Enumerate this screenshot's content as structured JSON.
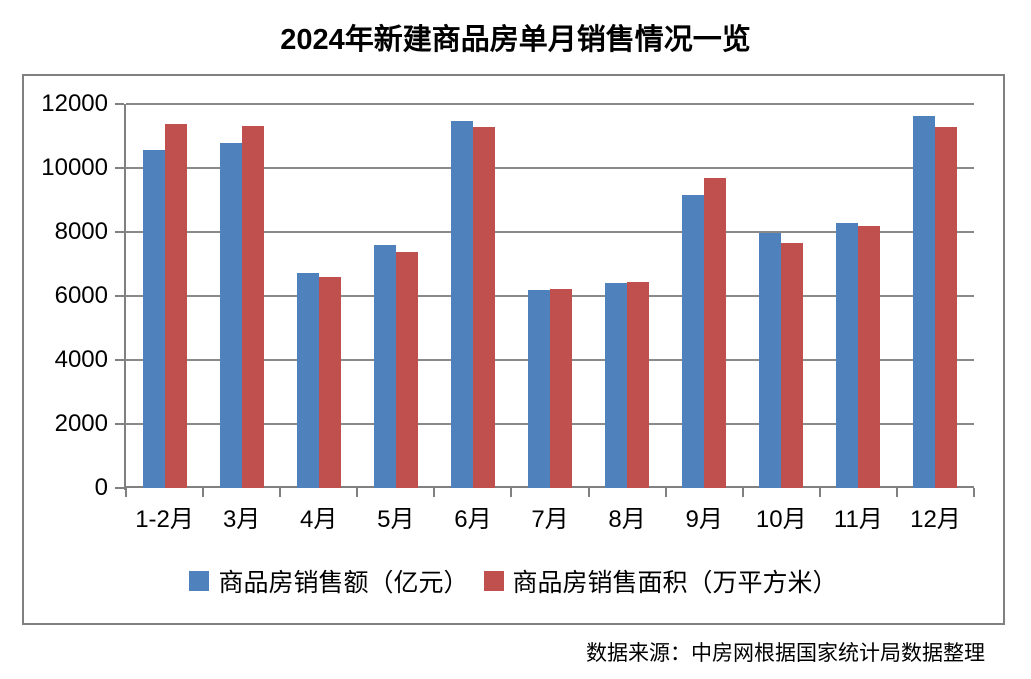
{
  "title": "2024年新建商品房单月销售情况一览",
  "source_note": "数据来源：中房网根据国家统计局数据整理",
  "chart_data": {
    "type": "bar",
    "categories": [
      "1-2月",
      "3月",
      "4月",
      "5月",
      "6月",
      "7月",
      "8月",
      "9月",
      "10月",
      "11月",
      "12月"
    ],
    "series": [
      {
        "name": "商品房销售额（亿元）",
        "color": "#4F81BD",
        "values": [
          10566,
          10789,
          6712,
          7598,
          11468,
          6197,
          6393,
          9157,
          7975,
          8270,
          11625
        ]
      },
      {
        "name": "商品房销售面积（万平方米）",
        "color": "#C0504D",
        "values": [
          11369,
          11299,
          6584,
          7390,
          11274,
          6233,
          6453,
          9682,
          7646,
          8188,
          11267
        ]
      }
    ],
    "ylim": [
      0,
      12000
    ],
    "ytick_step": 2000,
    "grid": true,
    "legend_position": "bottom"
  },
  "colors": {
    "axis": "#808080",
    "grid": "#898989",
    "border": "#808080",
    "title": "#000000"
  }
}
